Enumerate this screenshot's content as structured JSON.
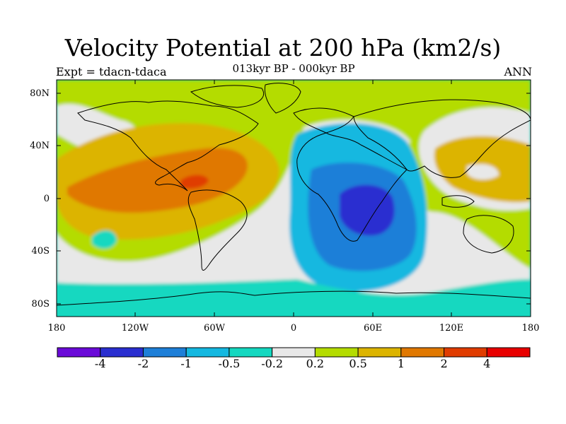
{
  "title": "Velocity Potential at 200 hPa (km2/s)",
  "subtitle": "013kyr BP - 000kyr BP",
  "left_label": "Expt = tdacn-tdaca",
  "right_label": "ANN",
  "lat_ticks": [
    "80N",
    "40N",
    "0",
    "40S",
    "80S"
  ],
  "lon_ticks": [
    "180",
    "120W",
    "60W",
    "0",
    "60E",
    "120E",
    "180"
  ],
  "colorbar": {
    "labels": [
      "-4",
      "-2",
      "-1",
      "-0.5",
      "-0.2",
      "0.2",
      "0.5",
      "1",
      "2",
      "4"
    ],
    "colors": [
      "#6a0ad8",
      "#2a2ed0",
      "#1e7fd8",
      "#14b8e0",
      "#14d8c0",
      "#e8e8e8",
      "#b4dc00",
      "#dcb400",
      "#e07800",
      "#e03c00",
      "#e80000"
    ]
  }
}
